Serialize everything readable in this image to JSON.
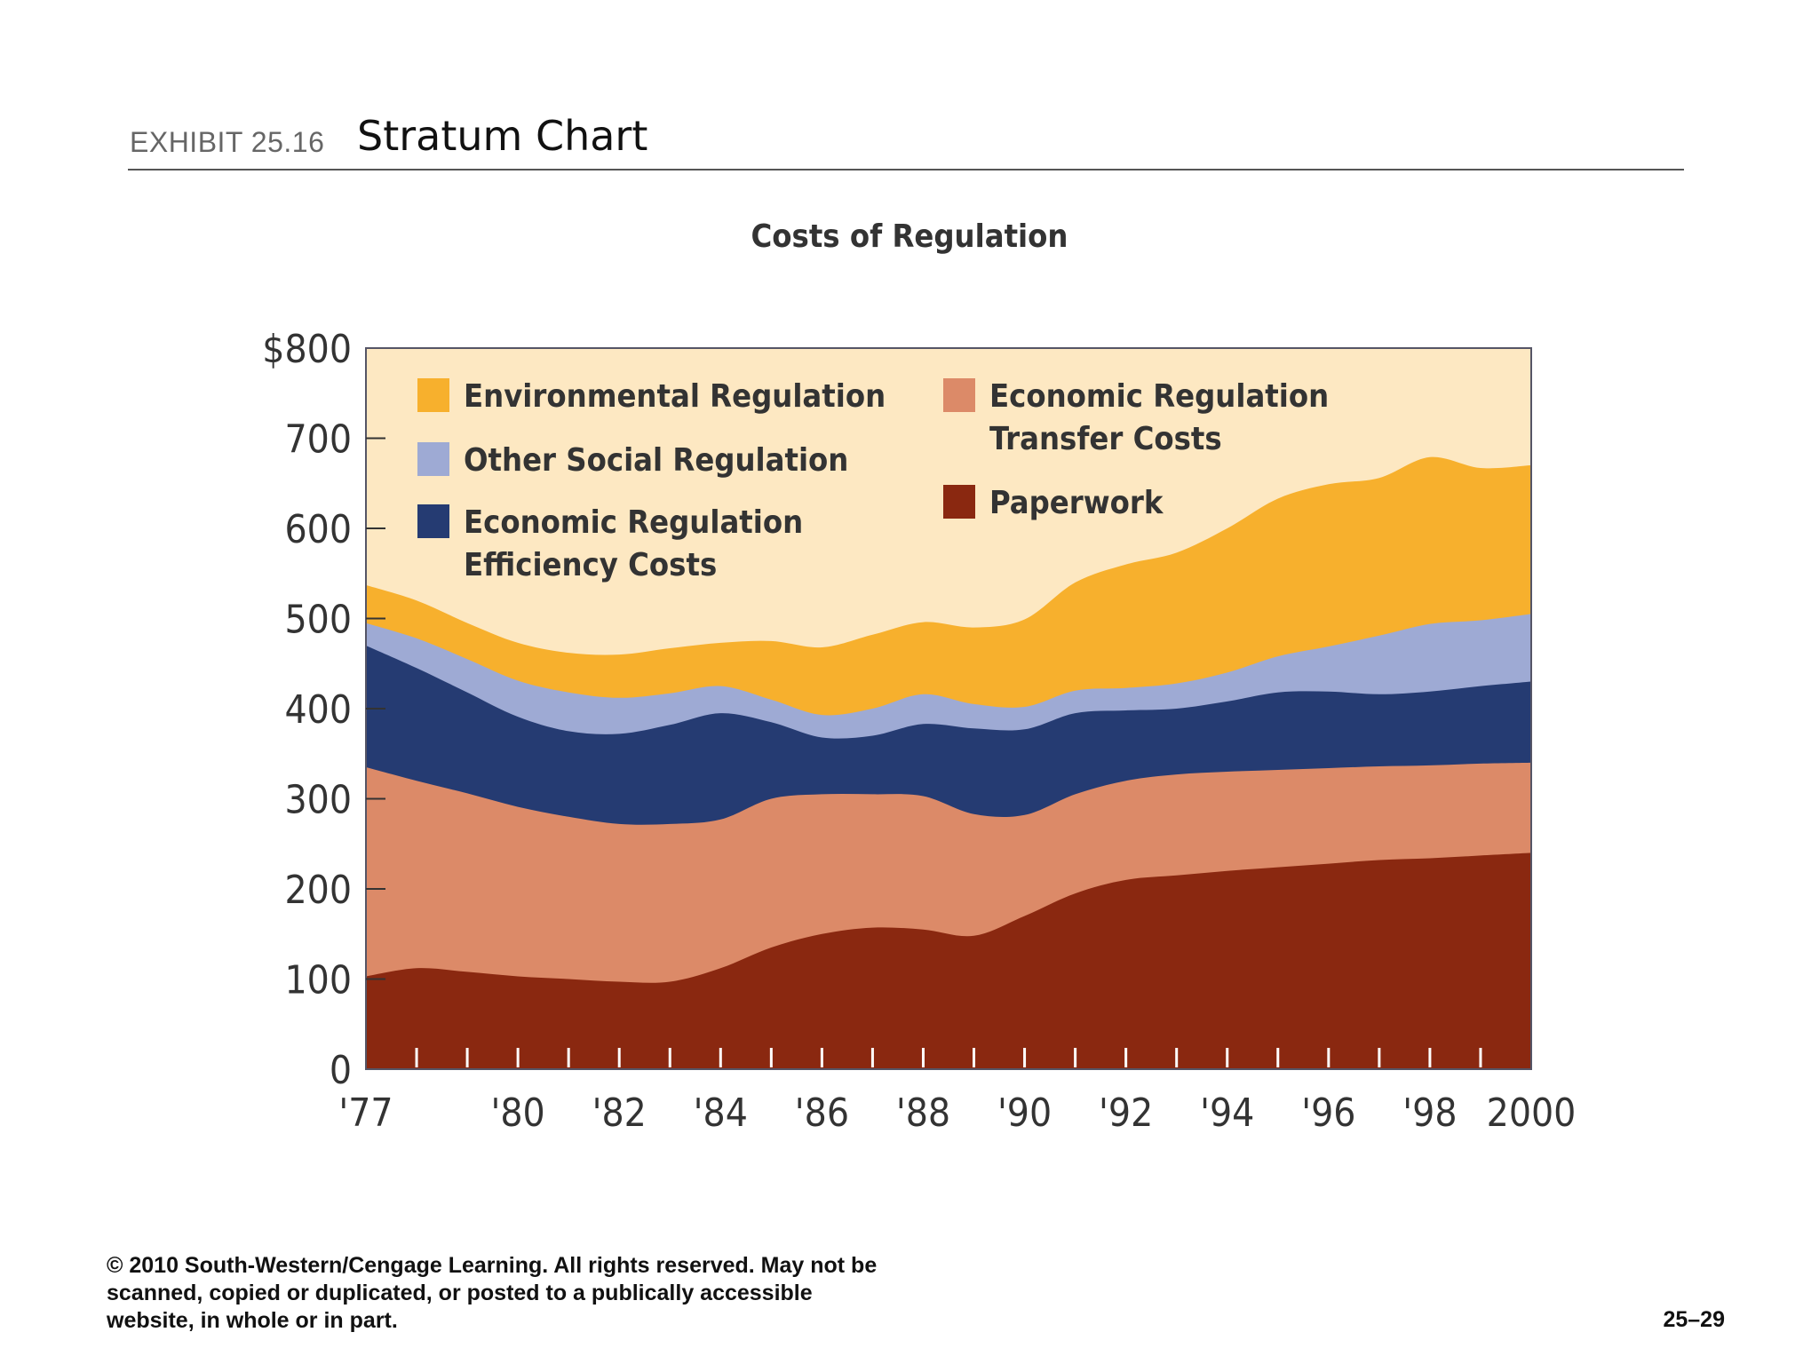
{
  "header": {
    "exhibit_label": "EXHIBIT 25.16",
    "title": "Stratum Chart"
  },
  "footer": {
    "copyright_lines": [
      "© 2010 South-Western/Cengage Learning. All rights reserved.  May not be",
      "scanned, copied or duplicated, or posted to a publically accessible",
      "website, in whole or in part."
    ],
    "page_number": "25–29"
  },
  "chart_data": {
    "type": "area",
    "stacked": true,
    "title": "Costs of Regulation",
    "xlabel": "",
    "ylabel": "",
    "x": [
      1977,
      1978,
      1979,
      1980,
      1981,
      1982,
      1983,
      1984,
      1985,
      1986,
      1987,
      1988,
      1989,
      1990,
      1991,
      1992,
      1993,
      1994,
      1995,
      1996,
      1997,
      1998,
      1999,
      2000
    ],
    "x_tick_labels": [
      {
        "x": 1977,
        "label": "'77"
      },
      {
        "x": 1980,
        "label": "'80"
      },
      {
        "x": 1982,
        "label": "'82"
      },
      {
        "x": 1984,
        "label": "'84"
      },
      {
        "x": 1986,
        "label": "'86"
      },
      {
        "x": 1988,
        "label": "'88"
      },
      {
        "x": 1990,
        "label": "'90"
      },
      {
        "x": 1992,
        "label": "'92"
      },
      {
        "x": 1994,
        "label": "'94"
      },
      {
        "x": 1996,
        "label": "'96"
      },
      {
        "x": 1998,
        "label": "'98"
      },
      {
        "x": 2000,
        "label": "2000"
      }
    ],
    "y_ticks": [
      0,
      100,
      200,
      300,
      400,
      500,
      600,
      700,
      800
    ],
    "y_tick_labels": [
      "0",
      "100",
      "200",
      "300",
      "400",
      "500",
      "600",
      "700",
      "$800"
    ],
    "xlim": [
      1977,
      2000
    ],
    "ylim": [
      0,
      800
    ],
    "grid": false,
    "legend_position": "top-inside",
    "plot_background": "#fde8c2",
    "series": [
      {
        "name": "Paperwork",
        "color": "#8a2810",
        "values": [
          103,
          112,
          108,
          103,
          100,
          97,
          97,
          112,
          135,
          150,
          157,
          155,
          148,
          170,
          195,
          210,
          215,
          220,
          224,
          228,
          232,
          234,
          237,
          240
        ]
      },
      {
        "name": "Economic Regulation Transfer Costs",
        "color": "#dc8a68",
        "values": [
          232,
          208,
          198,
          188,
          180,
          175,
          175,
          165,
          165,
          155,
          148,
          148,
          135,
          112,
          110,
          110,
          112,
          110,
          108,
          106,
          104,
          103,
          102,
          100
        ]
      },
      {
        "name": "Economic Regulation Efficiency Costs",
        "color": "#253b72",
        "values": [
          135,
          125,
          112,
          100,
          95,
          100,
          110,
          118,
          85,
          63,
          65,
          80,
          95,
          95,
          90,
          78,
          73,
          78,
          86,
          85,
          80,
          82,
          86,
          90
        ]
      },
      {
        "name": "Other Social Regulation",
        "color": "#9eaad4",
        "values": [
          25,
          33,
          37,
          40,
          43,
          40,
          35,
          30,
          25,
          25,
          30,
          33,
          27,
          25,
          25,
          25,
          28,
          32,
          40,
          50,
          65,
          75,
          73,
          75
        ]
      },
      {
        "name": "Environmental Regulation",
        "color": "#f7b02d",
        "values": [
          42,
          42,
          40,
          42,
          44,
          48,
          50,
          48,
          65,
          75,
          82,
          80,
          85,
          97,
          120,
          137,
          145,
          160,
          175,
          180,
          175,
          185,
          169,
          165
        ]
      }
    ]
  }
}
